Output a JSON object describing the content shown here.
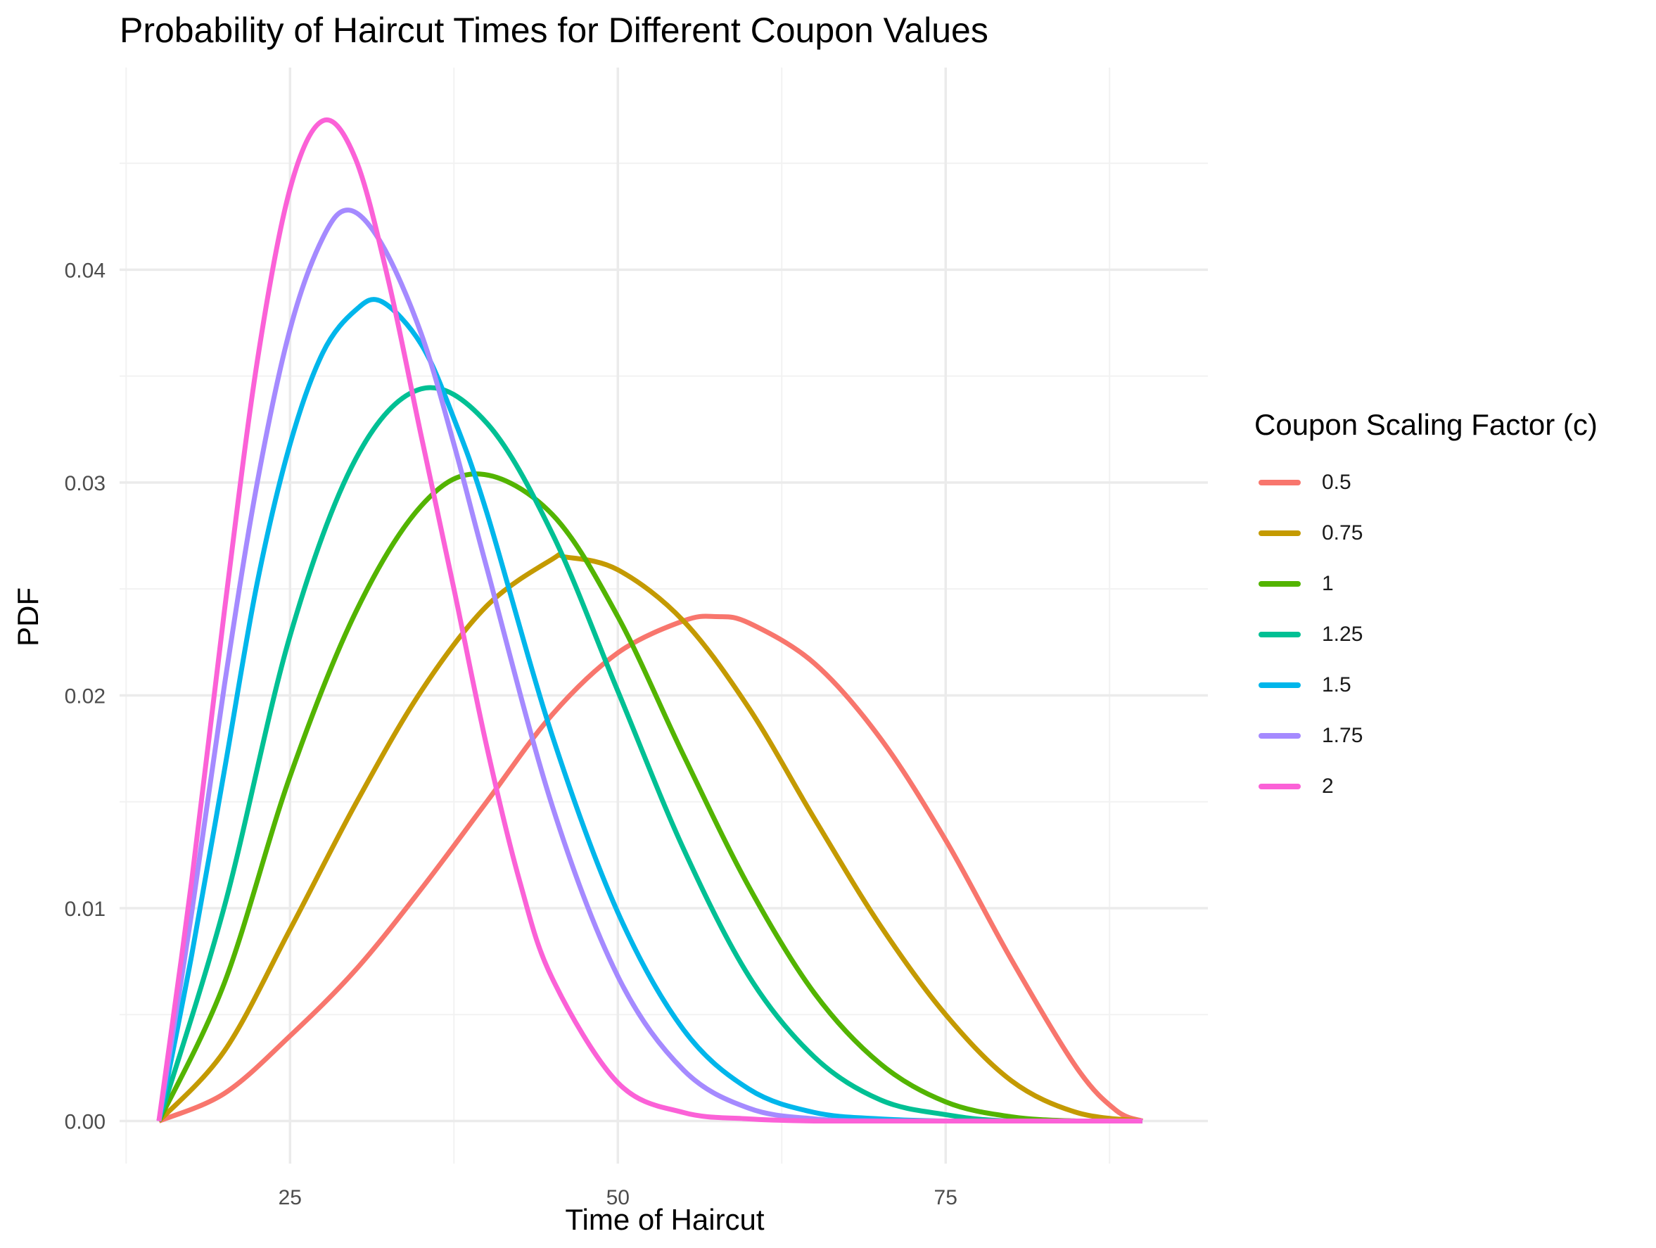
{
  "chart_data": {
    "type": "line",
    "title": "Probability of Haircut Times for Different Coupon Values",
    "xlabel": "Time of Haircut",
    "ylabel": "PDF",
    "xlim": [
      12,
      95
    ],
    "ylim": [
      -0.002,
      0.0495
    ],
    "x_ticks": [
      25,
      50,
      75
    ],
    "y_ticks": [
      0.0,
      0.01,
      0.02,
      0.03,
      0.04
    ],
    "y_tick_labels": [
      "0.00",
      "0.01",
      "0.02",
      "0.03",
      "0.04"
    ],
    "grid": true,
    "legend": {
      "title": "Coupon Scaling Factor (c)",
      "position": "right"
    },
    "series": [
      {
        "name": "0.5",
        "color": "#F8766D",
        "x": [
          15,
          20,
          25,
          30,
          35,
          40,
          45,
          50,
          55,
          57.5,
          60,
          65,
          70,
          75,
          80,
          85,
          88,
          90
        ],
        "y": [
          0,
          0.0013,
          0.004,
          0.0071,
          0.0109,
          0.015,
          0.0191,
          0.022,
          0.0235,
          0.0237,
          0.0234,
          0.0215,
          0.018,
          0.0132,
          0.0076,
          0.0025,
          0.0005,
          0
        ]
      },
      {
        "name": "0.75",
        "color": "#C49A00",
        "x": [
          15,
          20,
          25,
          30,
          35,
          40,
          45,
          46,
          50,
          55,
          60,
          65,
          70,
          75,
          80,
          85,
          90
        ],
        "y": [
          0,
          0.0033,
          0.009,
          0.0149,
          0.0202,
          0.0242,
          0.0264,
          0.0265,
          0.0259,
          0.0235,
          0.0194,
          0.0142,
          0.0092,
          0.005,
          0.0019,
          0.0004,
          0
        ]
      },
      {
        "name": "1",
        "color": "#53B400",
        "x": [
          15,
          20,
          25,
          30,
          35,
          39.5,
          45,
          50,
          55,
          60,
          65,
          70,
          75,
          80,
          85,
          90
        ],
        "y": [
          0,
          0.0065,
          0.0162,
          0.0239,
          0.0289,
          0.0304,
          0.0285,
          0.0237,
          0.0172,
          0.011,
          0.006,
          0.0027,
          0.0009,
          0.0002,
          0,
          0
        ]
      },
      {
        "name": "1.25",
        "color": "#00C094",
        "x": [
          15,
          20,
          25,
          30,
          35,
          40,
          45,
          50,
          55,
          60,
          65,
          70,
          75,
          80,
          90
        ],
        "y": [
          0,
          0.0101,
          0.0228,
          0.0311,
          0.0344,
          0.0328,
          0.0276,
          0.0202,
          0.0128,
          0.0068,
          0.003,
          0.001,
          0.0003,
          0,
          0
        ]
      },
      {
        "name": "1.5",
        "color": "#00B6EB",
        "x": [
          15,
          17.5,
          20,
          22.5,
          25,
          27.5,
          30,
          32,
          35,
          37.5,
          40,
          45,
          50,
          55,
          60,
          65,
          70,
          75,
          80,
          90
        ],
        "y": [
          0,
          0.0078,
          0.0165,
          0.0253,
          0.0318,
          0.0361,
          0.0381,
          0.0385,
          0.0365,
          0.033,
          0.0286,
          0.0181,
          0.0098,
          0.0043,
          0.0015,
          0.0004,
          0.0001,
          0,
          0,
          0
        ]
      },
      {
        "name": "1.75",
        "color": "#A58AFF",
        "x": [
          15,
          17.5,
          20,
          22.5,
          25,
          27.5,
          29.5,
          32,
          35,
          37.5,
          40,
          45,
          50,
          55,
          60,
          65,
          70,
          80,
          90
        ],
        "y": [
          0,
          0.0098,
          0.0205,
          0.03,
          0.0372,
          0.0415,
          0.0428,
          0.0412,
          0.037,
          0.0318,
          0.026,
          0.0148,
          0.0068,
          0.0024,
          0.0006,
          0.0001,
          0,
          0,
          0
        ]
      },
      {
        "name": "2",
        "color": "#FB61D7",
        "x": [
          15,
          17.5,
          20,
          22.5,
          25,
          27.5,
          30,
          32.5,
          35,
          37.5,
          40,
          42.5,
          45,
          50,
          55,
          60,
          65,
          70,
          80,
          90
        ],
        "y": [
          0,
          0.0113,
          0.024,
          0.0357,
          0.0438,
          0.047,
          0.0452,
          0.0395,
          0.0322,
          0.025,
          0.0176,
          0.0113,
          0.0067,
          0.0018,
          0.0004,
          0.0001,
          0,
          0,
          0,
          0
        ]
      }
    ]
  }
}
